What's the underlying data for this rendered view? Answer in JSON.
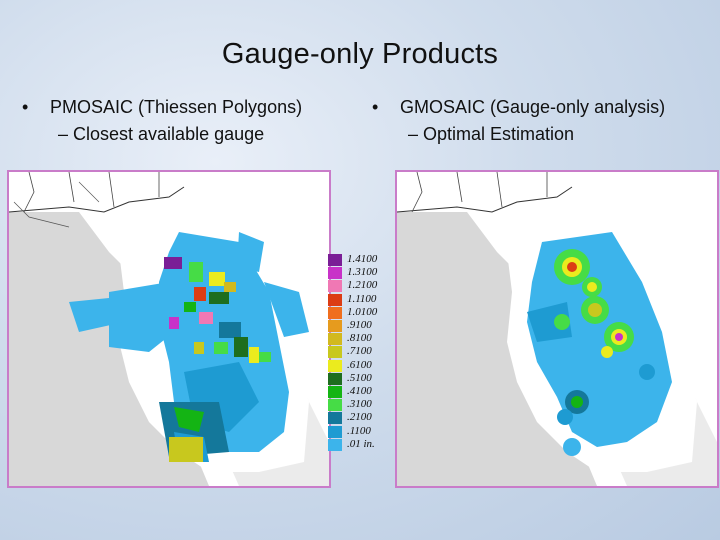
{
  "title": "Gauge-only Products",
  "left": {
    "bullet": "PMOSAIC (Thiessen Polygons)",
    "sub": "– Closest available gauge"
  },
  "right": {
    "bullet": "GMOSAIC (Gauge-only analysis)",
    "sub": "– Optimal Estimation"
  },
  "bullet_glyph": "•",
  "legend": [
    {
      "label": "1.4100",
      "color": "#7a1e96"
    },
    {
      "label": "1.3100",
      "color": "#c832c8"
    },
    {
      "label": "1.2100",
      "color": "#f078b4"
    },
    {
      "label": "1.1100",
      "color": "#dc3c14"
    },
    {
      "label": "1.0100",
      "color": "#f06e1e"
    },
    {
      "label": ".9100",
      "color": "#e69b1e"
    },
    {
      "label": ".8100",
      "color": "#d2b91e"
    },
    {
      "label": ".7100",
      "color": "#c8c81e"
    },
    {
      "label": ".6100",
      "color": "#ebeb1e"
    },
    {
      "label": ".5100",
      "color": "#1e6e1e"
    },
    {
      "label": ".4100",
      "color": "#14b414"
    },
    {
      "label": ".3100",
      "color": "#46dc46"
    },
    {
      "label": ".2100",
      "color": "#14789b"
    },
    {
      "label": ".1100",
      "color": "#1e9bd2"
    },
    {
      "label": ".01 in.",
      "color": "#3cb4eb"
    }
  ]
}
